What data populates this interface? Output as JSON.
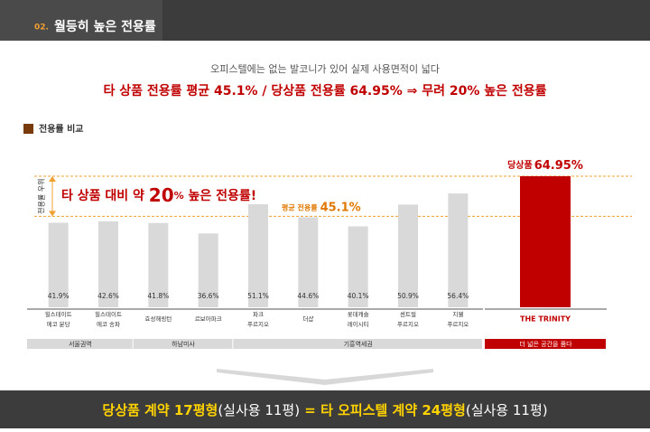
{
  "header": {
    "number": "02.",
    "title": "월등히 높은 전용률"
  },
  "subtitle": "오피스텔에는 없는 발코니가 있어 실제 사용면적이 넓다",
  "headline": "타 상품 전용률 평균 45.1% / 당상품 전용률 64.95% ⇒ 무려 20% 높은 전용률",
  "chart_data": {
    "type": "bar",
    "legend": "전용률 비교",
    "legend_color": "#7a3b0c",
    "categories": [
      "힐스테이트\n에코 분당",
      "힐스테이트\n에코 송파",
      "효성해링턴",
      "르보아파크",
      "파크\n푸르지오",
      "더샵",
      "롯데캐슬\n레이시티",
      "센트럴\n푸르지오",
      "지웰\n푸르지오",
      "THE TRINITY"
    ],
    "values": [
      41.9,
      42.6,
      41.8,
      36.6,
      51.1,
      44.6,
      40.1,
      50.9,
      56.4,
      64.95
    ],
    "value_labels": [
      "41.9%",
      "42.6%",
      "41.8%",
      "36.6%",
      "51.1%",
      "44.6%",
      "40.1%",
      "50.9%",
      "56.4%",
      "64.95%"
    ],
    "color": "#d9d9d9",
    "highlight_color": "#c00000",
    "highlight_prefix": "당상품",
    "groups": [
      {
        "label": "서울권역",
        "count": 2
      },
      {
        "label": "하남미사",
        "count": 2
      },
      {
        "label": "기흥역세권",
        "count": 5
      },
      {
        "label": "더 넓은 공간을 품다",
        "count": 1
      }
    ],
    "reference_lines": [
      {
        "value": 64.95
      },
      {
        "value": 45.1,
        "label": "평균 전용률",
        "value_label": "45.1%"
      }
    ],
    "annotation": {
      "parts": [
        "타 상품 대비 약 ",
        "20",
        "%",
        " 높은 전용률!"
      ],
      "axis_label": "전용률 우위"
    }
  },
  "footer": {
    "parts": [
      "당상품 계약 17평형",
      "(실사용 11평)",
      " = 타 오피스텔 계약 24평형",
      "(실사용 11평)"
    ]
  }
}
